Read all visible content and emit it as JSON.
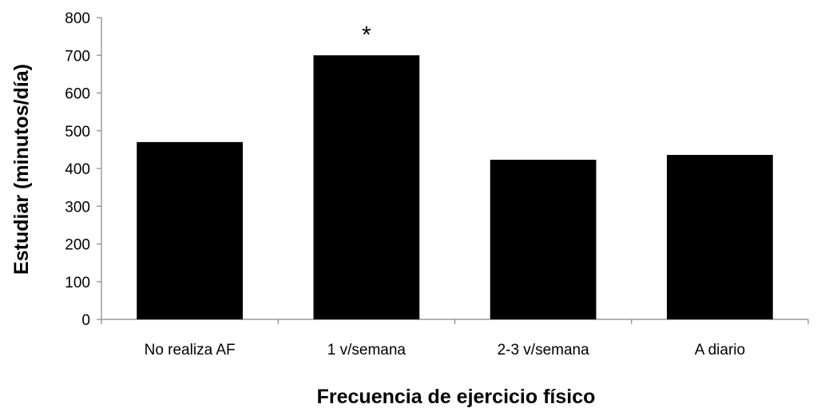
{
  "chart_data": {
    "type": "bar",
    "title": "",
    "xlabel": "Frecuencia de ejercicio físico",
    "ylabel": "Estudiar (minutos/día)",
    "categories": [
      "No realiza AF",
      "1 v/semana",
      "2-3 v/semana",
      "A diario"
    ],
    "values": [
      470,
      700,
      423,
      436
    ],
    "ylim": [
      0,
      800
    ],
    "yticks": [
      "0",
      "100",
      "200",
      "300",
      "400",
      "500",
      "600",
      "700",
      "800"
    ],
    "grid": false,
    "legend": "none",
    "bar_color": "#000000",
    "annotations": [
      {
        "category": "1 v/semana",
        "text": "*"
      }
    ]
  }
}
